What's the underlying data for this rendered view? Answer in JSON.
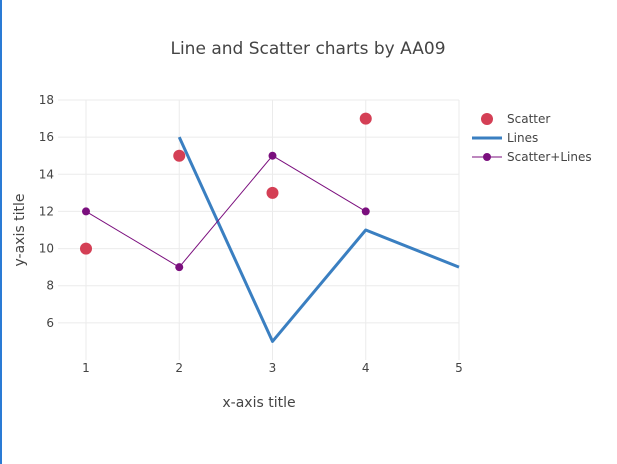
{
  "chart_data": {
    "type": "line",
    "title": "Line and Scatter charts by AA09",
    "xlabel": "x-axis title",
    "ylabel": "y-axis title",
    "xlim": [
      1,
      5
    ],
    "ylim": [
      4,
      18
    ],
    "x_ticks": [
      "1",
      "2",
      "3",
      "4",
      "5"
    ],
    "y_ticks": [
      "6",
      "8",
      "10",
      "12",
      "14",
      "16",
      "18"
    ],
    "grid": true,
    "legend_position": "right",
    "series": [
      {
        "name": "Scatter",
        "mode": "markers",
        "color": "#d43f55",
        "x": [
          1,
          2,
          3,
          4
        ],
        "y": [
          10,
          15,
          13,
          17
        ]
      },
      {
        "name": "Lines",
        "mode": "lines",
        "color": "#3a7fc1",
        "x": [
          2,
          3,
          4,
          5
        ],
        "y": [
          16,
          5,
          11,
          9
        ]
      },
      {
        "name": "Scatter+Lines",
        "mode": "lines+markers",
        "color": "#7b0f7e",
        "x": [
          1,
          2,
          3,
          4
        ],
        "y": [
          12,
          9,
          15,
          12
        ]
      }
    ]
  }
}
